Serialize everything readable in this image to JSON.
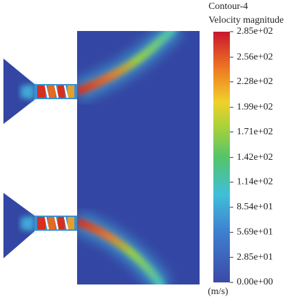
{
  "chart_data": {
    "type": "colorbar",
    "title": "Contour-4",
    "subtitle": "Velocity magnitude",
    "unit": "(m/s)",
    "ylim": [
      0,
      285
    ],
    "yticks": [
      {
        "value": 0,
        "label": "0.00e+00"
      },
      {
        "value": 28.5,
        "label": "2.85e+01"
      },
      {
        "value": 56.9,
        "label": "5.69e+01"
      },
      {
        "value": 85.4,
        "label": "8.54e+01"
      },
      {
        "value": 114,
        "label": "1.14e+02"
      },
      {
        "value": 142,
        "label": "1.42e+02"
      },
      {
        "value": 171,
        "label": "1.71e+02"
      },
      {
        "value": 199,
        "label": "1.99e+02"
      },
      {
        "value": 228,
        "label": "2.28e+02"
      },
      {
        "value": 256,
        "label": "2.56e+02"
      },
      {
        "value": 285,
        "label": "2.85e+02"
      }
    ]
  }
}
